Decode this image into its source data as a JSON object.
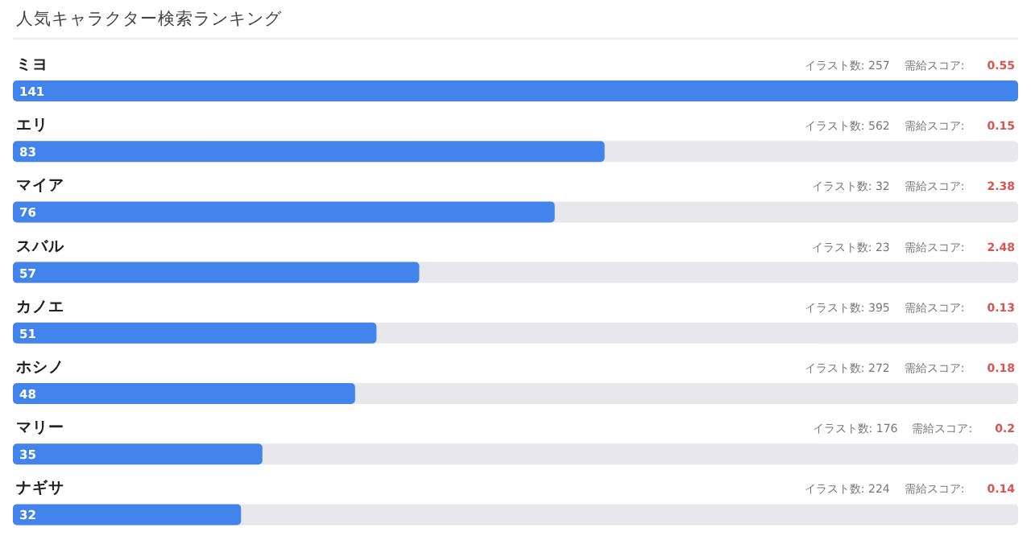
{
  "chart_data": {
    "type": "bar",
    "orientation": "horizontal",
    "title": "人気キャラクター検索ランキング",
    "categories": [
      "ミヨ",
      "エリ",
      "マイア",
      "スバル",
      "カノエ",
      "ホシノ",
      "マリー",
      "ナギサ"
    ],
    "values": [
      141,
      83,
      76,
      57,
      51,
      48,
      35,
      32
    ],
    "color": "#4284ec",
    "data_labels": true,
    "annotations": [
      "イラスト数: 257",
      "需給スコア:",
      "0.55",
      "イラスト数: 562",
      "需給スコア:",
      "0.15",
      "イラスト数: 32",
      "需給スコア:",
      "2.38",
      "イラスト数: 23",
      "需給スコア:",
      "2.48",
      "イラスト数: 395",
      "需給スコア:",
      "0.13",
      "イラスト数: 272",
      "需給スコア:",
      "0.18",
      "イラスト数: 176",
      "需給スコア:",
      "0.2",
      "イラスト数: 224",
      "需給スコア:",
      "0.14"
    ]
  }
}
